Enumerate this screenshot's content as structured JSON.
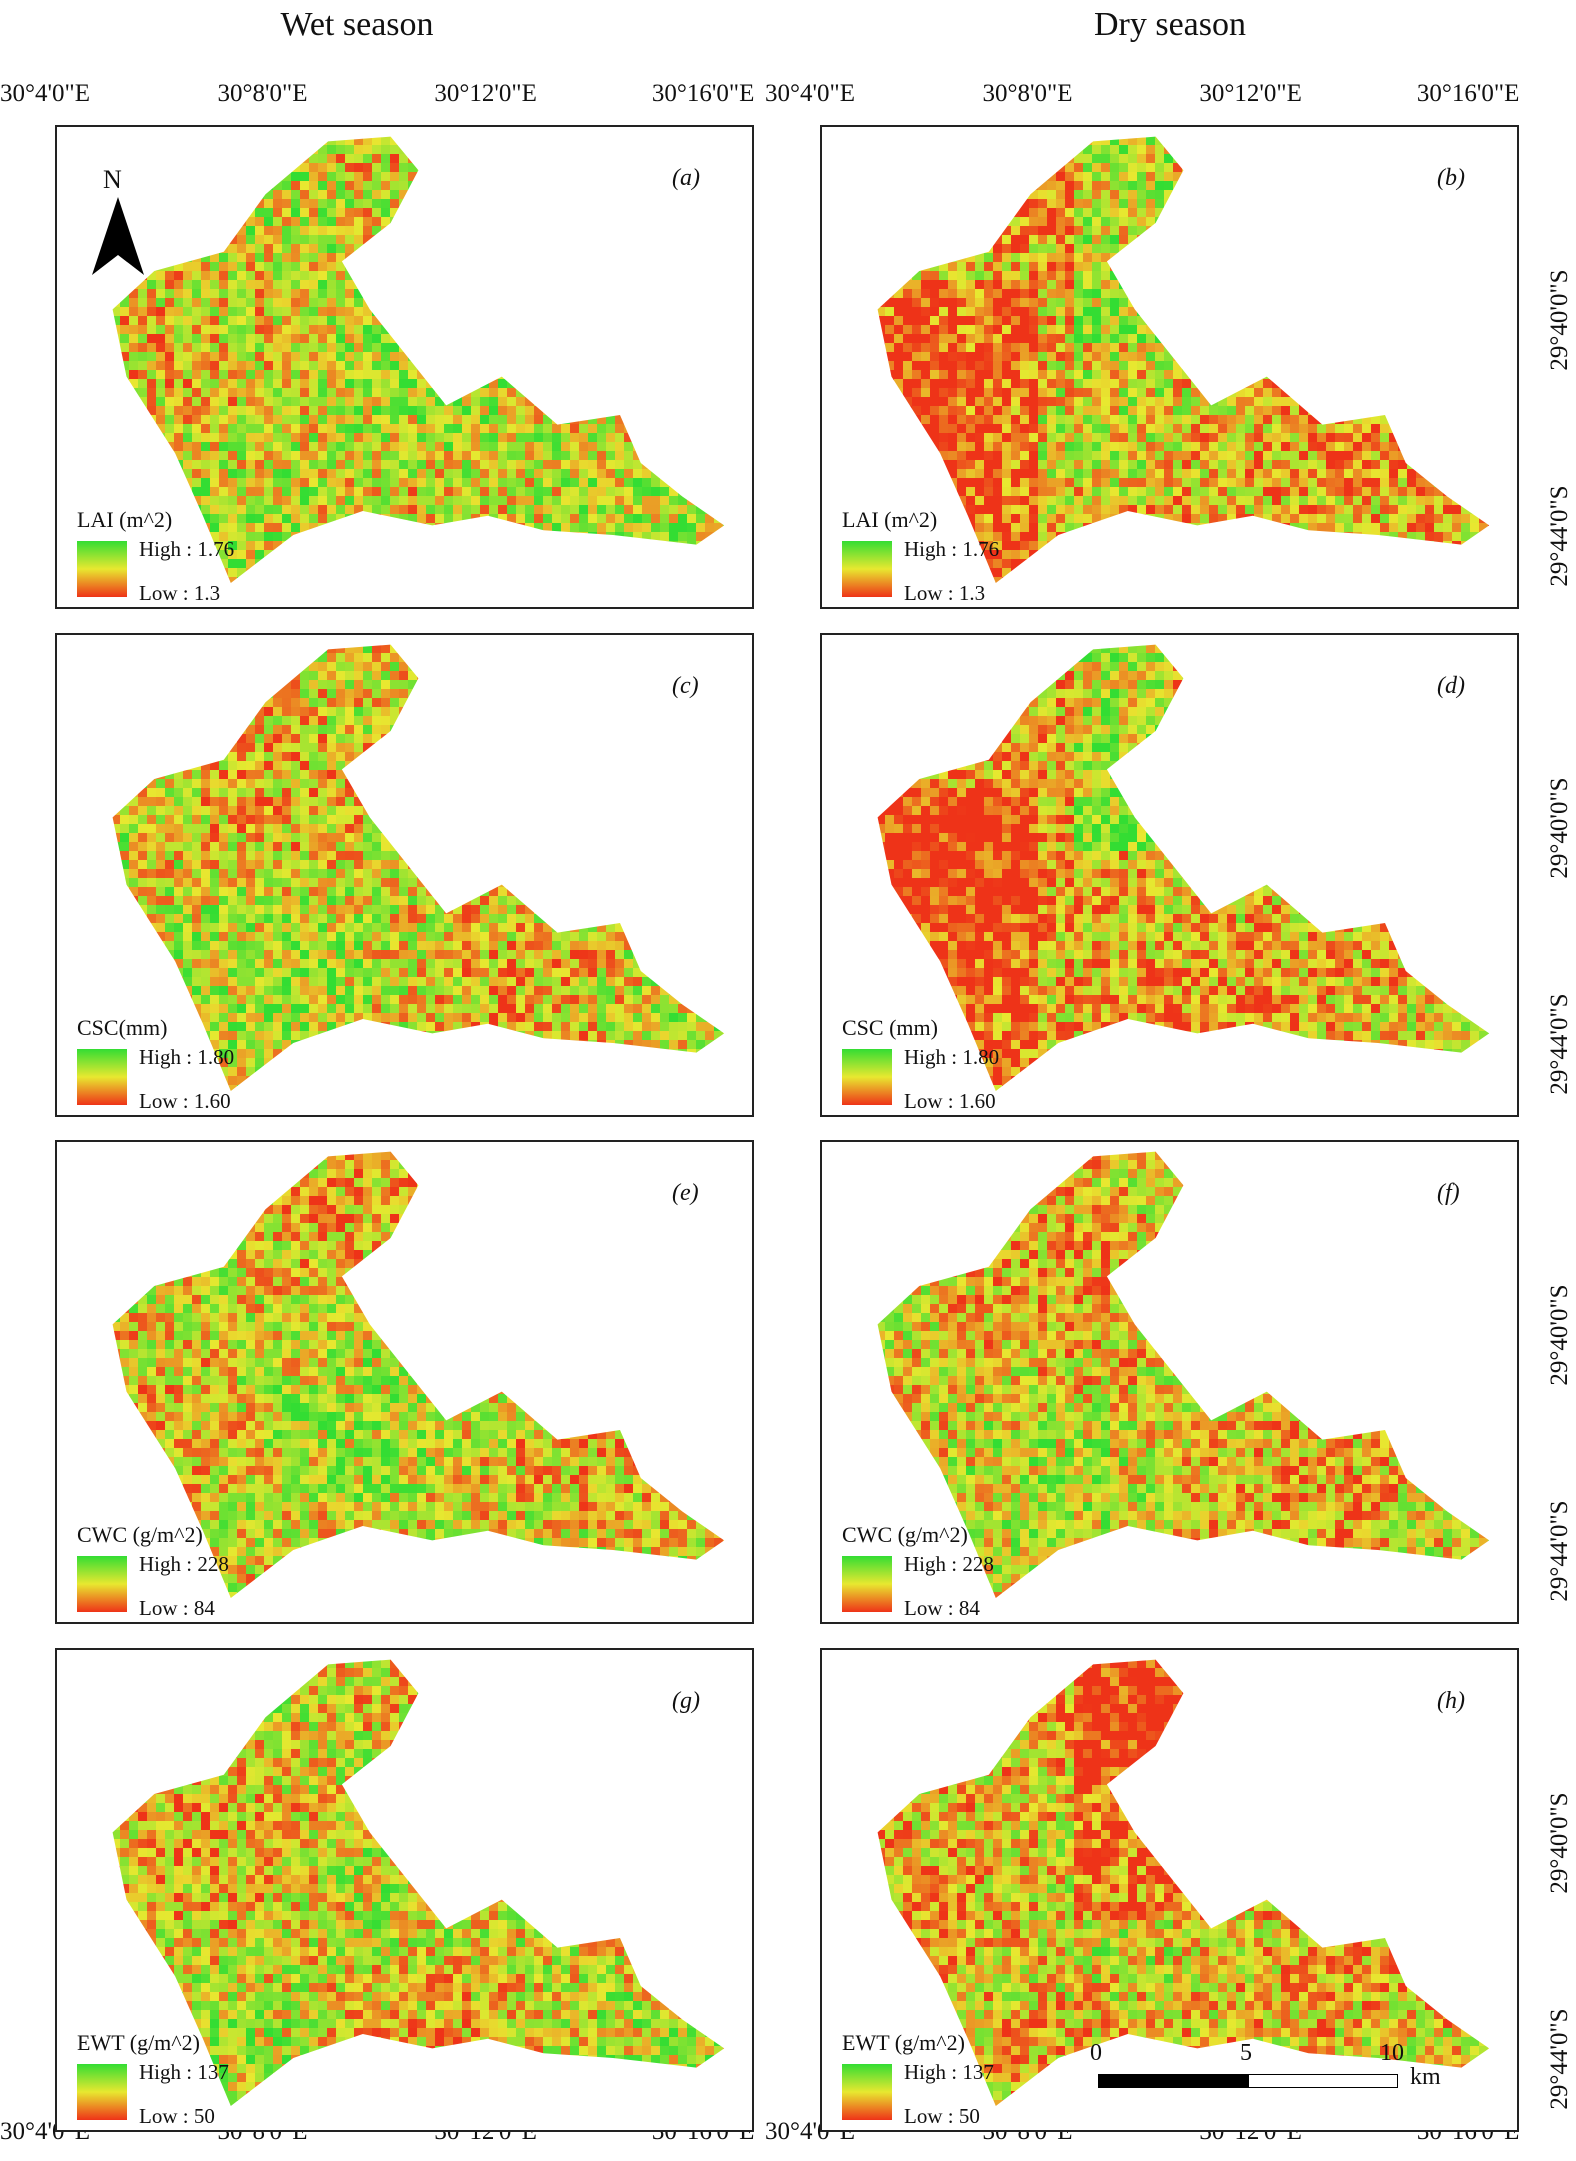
{
  "columns": {
    "wet": "Wet season",
    "dry": "Dry season"
  },
  "x_ticks": [
    "30°4'0\"E",
    "30°8'0\"E",
    "30°12'0\"E",
    "30°16'0\"E"
  ],
  "y_ticks": [
    "29°40'0\"S",
    "29°44'0\"S"
  ],
  "north": "N",
  "panels": [
    {
      "id": "a",
      "label": "(a)",
      "legend_title": "LAI (m^2)",
      "high": "High : 1.76",
      "low": "Low : 1.3",
      "green_bias": 0.55
    },
    {
      "id": "b",
      "label": "(b)",
      "legend_title": "LAI (m^2)",
      "high": "High : 1.76",
      "low": "Low : 1.3",
      "green_bias": 0.4
    },
    {
      "id": "c",
      "label": "(c)",
      "legend_title": "CSC(mm)",
      "high": "High : 1.80",
      "low": "Low : 1.60",
      "green_bias": 0.52
    },
    {
      "id": "d",
      "label": "(d)",
      "legend_title": "CSC (mm)",
      "high": "High : 1.80",
      "low": "Low : 1.60",
      "green_bias": 0.35
    },
    {
      "id": "e",
      "label": "(e)",
      "legend_title": "CWC (g/m^2)",
      "high": "High : 228",
      "low": "Low : 84",
      "green_bias": 0.5
    },
    {
      "id": "f",
      "label": "(f)",
      "legend_title": "CWC (g/m^2)",
      "high": "High : 228",
      "low": "Low : 84",
      "green_bias": 0.47
    },
    {
      "id": "g",
      "label": "(g)",
      "legend_title": "EWT (g/m^2)",
      "high": "High : 137",
      "low": "Low : 50",
      "green_bias": 0.5
    },
    {
      "id": "h",
      "label": "(h)",
      "legend_title": "EWT (g/m^2)",
      "high": "High : 137",
      "low": "Low : 50",
      "green_bias": 0.42
    }
  ],
  "scale": {
    "ticks": [
      "0",
      "5",
      "10"
    ],
    "unit": "km"
  },
  "colors": {
    "high": "#33dd33",
    "mid": "#e8e830",
    "low": "#ee3318"
  }
}
